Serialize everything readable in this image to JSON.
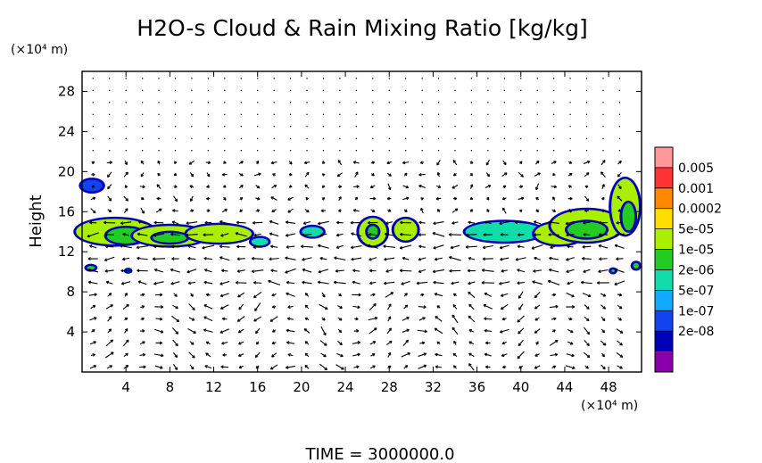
{
  "chart_data": {
    "type": "heatmap",
    "title": "H2O-s Cloud & Rain Mixing Ratio [kg/kg]",
    "ylabel": "Height",
    "y_unit": "(×10⁴ m)",
    "x_unit": "(×10⁴ m)",
    "xlim": [
      0,
      51
    ],
    "ylim": [
      0,
      30
    ],
    "x_ticks": [
      "4",
      "8",
      "12",
      "16",
      "20",
      "24",
      "28",
      "32",
      "36",
      "40",
      "44",
      "48"
    ],
    "y_ticks": [
      "4",
      "8",
      "12",
      "16",
      "20",
      "24",
      "28"
    ],
    "colorbar_levels": [
      "0.005",
      "0.001",
      "0.0002",
      "5e-05",
      "1e-05",
      "2e-06",
      "5e-07",
      "1e-07",
      "2e-08"
    ],
    "colorbar_colors": [
      "#ff9999",
      "#ff3333",
      "#ff8800",
      "#ffdd00",
      "#aaee00",
      "#22cc22",
      "#11ddaa",
      "#11aaff",
      "#1144ee",
      "#0000bb",
      "#8800aa"
    ],
    "footer": "TIME = 3000000.0",
    "cloud_regions": [
      {
        "x": 0.9,
        "y": 18.6,
        "rx": 1.2,
        "ry": 0.8,
        "level": 2
      },
      {
        "x": 3.0,
        "y": 14.0,
        "rx": 3.8,
        "ry": 1.5,
        "level": 6
      },
      {
        "x": 4.0,
        "y": 13.6,
        "rx": 2.0,
        "ry": 1.0,
        "level": 5
      },
      {
        "x": 8.0,
        "y": 13.6,
        "rx": 3.6,
        "ry": 1.2,
        "level": 6
      },
      {
        "x": 8.0,
        "y": 13.4,
        "rx": 1.8,
        "ry": 0.7,
        "level": 5
      },
      {
        "x": 12.5,
        "y": 13.8,
        "rx": 3.2,
        "ry": 1.1,
        "level": 6
      },
      {
        "x": 16.2,
        "y": 13.0,
        "rx": 1.0,
        "ry": 0.6,
        "level": 4
      },
      {
        "x": 21.0,
        "y": 14.0,
        "rx": 1.2,
        "ry": 0.7,
        "level": 4
      },
      {
        "x": 26.5,
        "y": 14.0,
        "rx": 1.5,
        "ry": 1.6,
        "level": 6
      },
      {
        "x": 26.5,
        "y": 14.0,
        "rx": 0.7,
        "ry": 0.8,
        "level": 5
      },
      {
        "x": 29.5,
        "y": 14.2,
        "rx": 1.3,
        "ry": 1.3,
        "level": 6
      },
      {
        "x": 38.5,
        "y": 14.0,
        "rx": 3.8,
        "ry": 1.2,
        "level": 4
      },
      {
        "x": 43.5,
        "y": 13.8,
        "rx": 2.5,
        "ry": 1.3,
        "level": 6
      },
      {
        "x": 46.0,
        "y": 14.6,
        "rx": 3.5,
        "ry": 1.8,
        "level": 6
      },
      {
        "x": 46.0,
        "y": 14.2,
        "rx": 2.0,
        "ry": 1.0,
        "level": 5
      },
      {
        "x": 49.5,
        "y": 16.5,
        "rx": 1.5,
        "ry": 3.0,
        "level": 6
      },
      {
        "x": 49.8,
        "y": 15.5,
        "rx": 0.8,
        "ry": 1.6,
        "level": 5
      },
      {
        "x": 0.8,
        "y": 10.4,
        "rx": 0.6,
        "ry": 0.4,
        "level": 5
      },
      {
        "x": 4.2,
        "y": 10.1,
        "rx": 0.4,
        "ry": 0.3,
        "level": 5
      },
      {
        "x": 48.4,
        "y": 10.1,
        "rx": 0.4,
        "ry": 0.35,
        "level": 5
      },
      {
        "x": 50.5,
        "y": 10.6,
        "rx": 0.5,
        "ry": 0.5,
        "level": 5
      }
    ]
  }
}
